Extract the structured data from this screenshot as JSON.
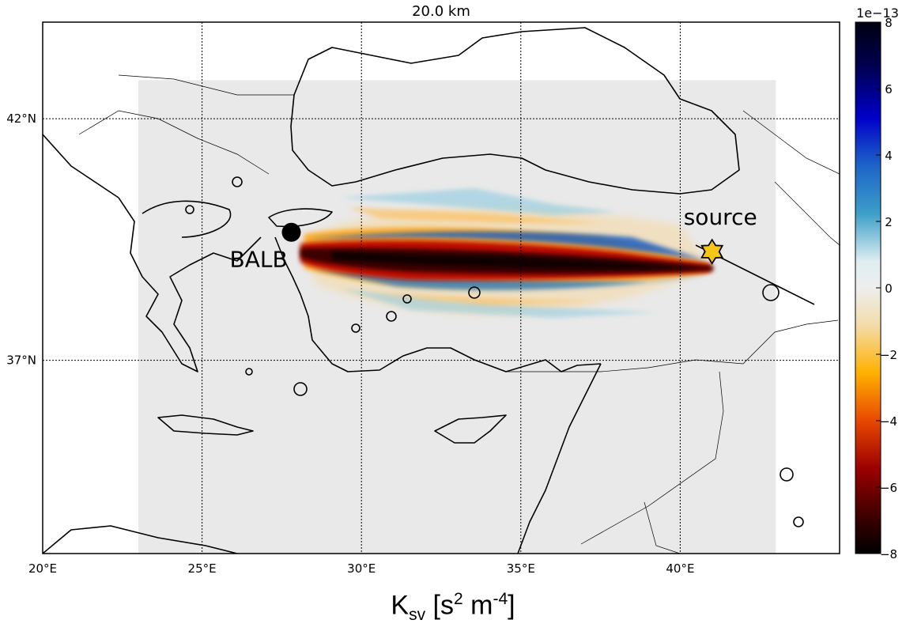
{
  "title": "20.0 km",
  "map": {
    "lon_range": [
      20,
      45
    ],
    "lat_range": [
      33,
      44
    ],
    "meridians": [
      {
        "value": 20,
        "label": "20°E"
      },
      {
        "value": 25,
        "label": "25°E"
      },
      {
        "value": 30,
        "label": "30°E"
      },
      {
        "value": 35,
        "label": "35°E"
      },
      {
        "value": 40,
        "label": "40°E"
      }
    ],
    "parallels": [
      {
        "value": 42,
        "label": "42°N"
      },
      {
        "value": 37,
        "label": "37°N"
      }
    ],
    "model_domain": {
      "lon": [
        23,
        43
      ],
      "lat": [
        31.1,
        42.8
      ]
    },
    "station": {
      "label": "BALB",
      "lon": 27.8,
      "lat": 39.65
    },
    "source": {
      "label": "source",
      "lon": 41.0,
      "lat": 39.25
    }
  },
  "colorbar": {
    "multiplier": "1e−13",
    "range": [
      -8,
      8
    ],
    "ticks": [
      "8",
      "6",
      "4",
      "2",
      "0",
      "−2",
      "−4",
      "−6",
      "−8"
    ],
    "colors": [
      "#000012",
      "#00004d",
      "#0000c8",
      "#1e64c8",
      "#3c9ec8",
      "#dfeef1",
      "#eeeeee",
      "#f3dcaa",
      "#ffb100",
      "#e84800",
      "#9b0000",
      "#3d0000",
      "#000000"
    ]
  },
  "quantity": {
    "symbol": "K",
    "subscript": "sv",
    "unit": "[s",
    "unit_exp1": "2",
    "unit_mid": " m",
    "unit_exp2": "-4",
    "unit_end": "]"
  },
  "colors": {
    "domain_fill": "#e9e9e9",
    "station": "#000000",
    "source_star": "#f5c518",
    "coast": "#000000"
  }
}
